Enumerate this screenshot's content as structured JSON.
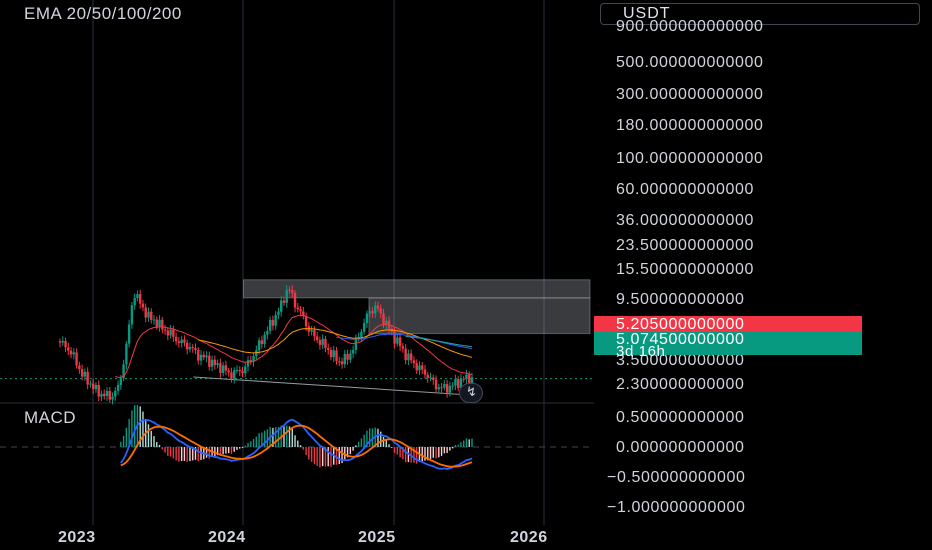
{
  "indicators": {
    "ema": "EMA 20/50/100/200",
    "macd": "MACD"
  },
  "currency": "USDT",
  "price_axis": [
    "900.000000000000",
    "500.000000000000",
    "300.000000000000",
    "180.000000000000",
    "100.000000000000",
    "60.000000000000",
    "36.000000000000",
    "23.500000000000",
    "15.500000000000",
    "9.500000000000",
    "3.500000000000",
    "2.300000000000"
  ],
  "macd_axis": [
    "0.500000000000",
    "0.000000000000",
    "−0.500000000000",
    "−1.000000000000"
  ],
  "time_axis": [
    "2023",
    "2024",
    "2025",
    "2026"
  ],
  "tags": {
    "last_price": "5.205000000000",
    "close_price": "5.074500000000",
    "countdown": "3d 16h"
  },
  "icons": {
    "replay": "bolt-icon"
  },
  "colors": {
    "up": "#089981",
    "down": "#f23645",
    "ema20": "#f23645",
    "ema50": "#ff9800",
    "ema100": "#2962ff",
    "ema200": "#26a69a",
    "macd_line": "#2962ff",
    "signal_line": "#ff6d00"
  },
  "chart_data": {
    "type": "candlestick",
    "title": "",
    "scale": "log",
    "ylim": [
      1.9,
      1000
    ],
    "x_range": [
      "2022-06",
      "2026-09"
    ],
    "close_series": [
      8.6,
      8.0,
      6.8,
      5.4,
      4.8,
      4.2,
      4.0,
      3.9,
      4.5,
      8.0,
      18.0,
      15.0,
      12.5,
      11.8,
      10.5,
      9.8,
      8.8,
      8.4,
      7.8,
      7.0,
      6.8,
      6.2,
      6.0,
      5.4,
      5.6,
      5.8,
      6.8,
      8.2,
      10.0,
      12.0,
      14.5,
      19.5,
      15.0,
      12.5,
      10.0,
      9.0,
      8.2,
      7.2,
      6.5,
      6.8,
      8.2,
      10.5,
      13.5,
      14.5,
      12.0,
      10.0,
      8.5,
      7.2,
      6.4,
      5.8,
      5.3,
      4.6,
      4.4,
      4.5,
      4.8,
      5.1,
      5.07
    ],
    "highlight_zones": [
      {
        "from": "2024-01",
        "to": "2026-06",
        "low": 16.5,
        "high": 21.5
      },
      {
        "from": "2024-11",
        "to": "2026-06",
        "low": 9.8,
        "high": 16.5
      }
    ],
    "support_line": {
      "from": [
        "2023-09",
        5.2
      ],
      "to": [
        "2025-07",
        4.0
      ]
    },
    "last_price": 5.205,
    "close_price": 5.0745,
    "macd": {
      "ylim": [
        -1.15,
        0.7
      ]
    }
  }
}
